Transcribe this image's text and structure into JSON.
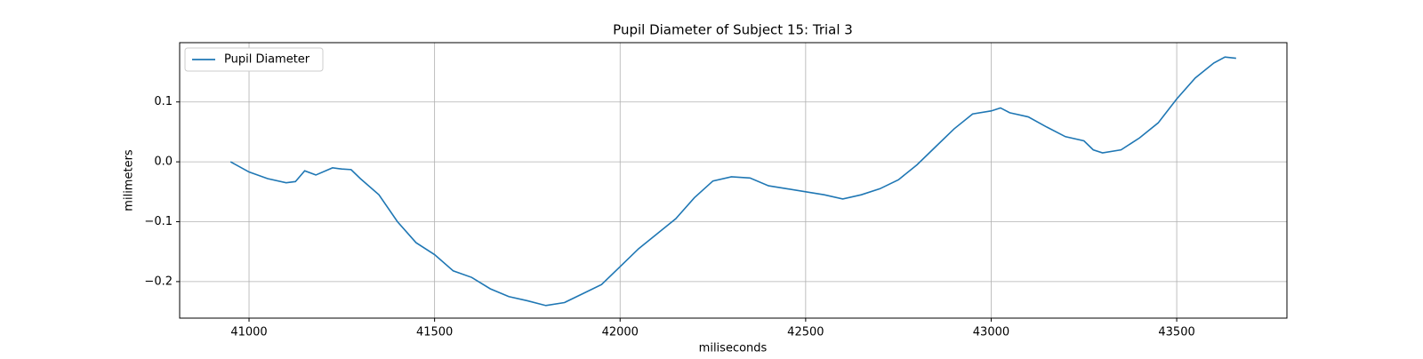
{
  "chart_data": {
    "type": "line",
    "title": "Pupil Diameter of Subject 15: Trial 3",
    "xlabel": "miliseconds",
    "ylabel": "milimeters",
    "x": [
      40950,
      41000,
      41050,
      41100,
      41125,
      41150,
      41180,
      41225,
      41250,
      41275,
      41300,
      41350,
      41400,
      41450,
      41500,
      41550,
      41600,
      41650,
      41700,
      41750,
      41800,
      41850,
      41900,
      41950,
      42000,
      42050,
      42100,
      42150,
      42200,
      42250,
      42300,
      42350,
      42400,
      42450,
      42500,
      42550,
      42600,
      42650,
      42700,
      42750,
      42800,
      42850,
      42900,
      42950,
      43000,
      43025,
      43050,
      43100,
      43150,
      43200,
      43250,
      43275,
      43300,
      43350,
      43400,
      43450,
      43500,
      43550,
      43600,
      43630,
      43660
    ],
    "series": [
      {
        "name": "Pupil Diameter",
        "color": "#1f77b4",
        "values": [
          0.0,
          -0.017,
          -0.028,
          -0.035,
          -0.033,
          -0.015,
          -0.022,
          -0.01,
          -0.012,
          -0.013,
          -0.028,
          -0.055,
          -0.1,
          -0.135,
          -0.155,
          -0.182,
          -0.193,
          -0.212,
          -0.225,
          -0.232,
          -0.24,
          -0.235,
          -0.22,
          -0.205,
          -0.175,
          -0.145,
          -0.12,
          -0.095,
          -0.06,
          -0.032,
          -0.025,
          -0.027,
          -0.04,
          -0.045,
          -0.05,
          -0.055,
          -0.062,
          -0.055,
          -0.045,
          -0.03,
          -0.005,
          0.025,
          0.055,
          0.08,
          0.085,
          0.09,
          0.082,
          0.075,
          0.058,
          0.042,
          0.035,
          0.02,
          0.015,
          0.02,
          0.04,
          0.065,
          0.105,
          0.14,
          0.165,
          0.175,
          0.173
        ]
      }
    ],
    "xlim": [
      40813,
      43797
    ],
    "xticks": [
      41000,
      41500,
      42000,
      42500,
      43000,
      43500
    ],
    "ylim": [
      -0.261,
      0.199
    ],
    "yticks": [
      {
        "value": -0.2,
        "label": "−0.2"
      },
      {
        "value": -0.1,
        "label": "−0.1"
      },
      {
        "value": 0,
        "label": "0.0"
      },
      0.1
    ],
    "grid": true,
    "legend": "upper left"
  }
}
